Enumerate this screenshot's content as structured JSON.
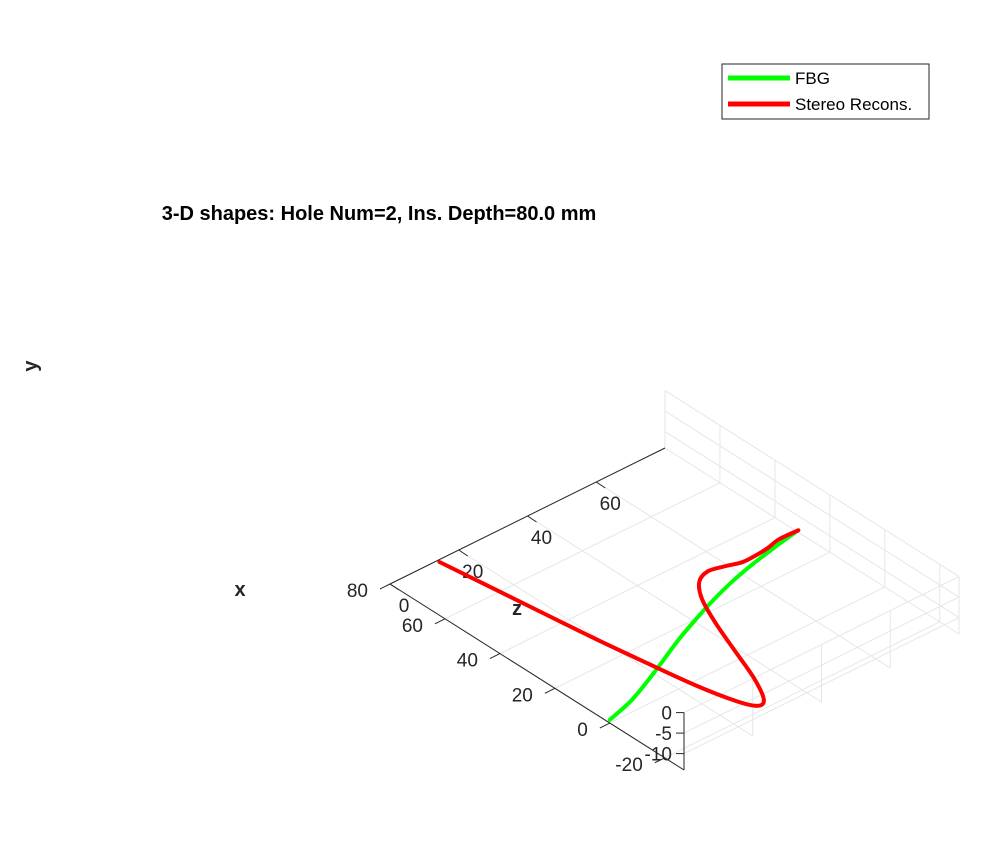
{
  "chart_data": {
    "type": "line",
    "title": "3-D shapes: Hole Num=2, Ins. Depth=80.0 mm",
    "xlabel": "x",
    "ylabel": "y",
    "zlabel": "z",
    "x_ticks": [
      "-20",
      "0",
      "20",
      "40",
      "60",
      "80"
    ],
    "y_ticks": [
      "-10",
      "-5",
      "0"
    ],
    "z_ticks": [
      "0",
      "20",
      "40",
      "60"
    ],
    "xlim": [
      -27,
      80
    ],
    "ylim": [
      -14,
      0
    ],
    "zlim": [
      0,
      80
    ],
    "grid": true,
    "legend_position": "top-right",
    "series": [
      {
        "name": "FBG",
        "color": "#00ff00",
        "points": [
          [
            0.0,
            -13.2,
            0.0
          ],
          [
            2.6,
            -13.2,
            8.0
          ],
          [
            6.4,
            -13.2,
            16.0
          ],
          [
            10.7,
            -13.3,
            24.0
          ],
          [
            15.0,
            -13.3,
            32.0
          ],
          [
            18.8,
            -13.3,
            40.0
          ],
          [
            22.4,
            -13.4,
            48.0
          ],
          [
            25.4,
            -13.4,
            56.0
          ],
          [
            27.9,
            -13.5,
            64.0
          ],
          [
            29.8,
            -13.5,
            72.0
          ],
          [
            31.5,
            -13.5,
            80.0
          ]
        ]
      },
      {
        "name": "Stereo Recons.",
        "color": "#ff0000",
        "points": [
          [
            62.0,
            -1.0,
            0.0
          ],
          [
            48.0,
            -3.0,
            4.0
          ],
          [
            34.0,
            -5.0,
            8.0
          ],
          [
            20.0,
            -7.0,
            12.0
          ],
          [
            6.0,
            -8.7,
            16.0
          ],
          [
            -6.0,
            -10.5,
            20.0
          ],
          [
            -16.0,
            -11.8,
            24.0
          ],
          [
            -20.0,
            -12.5,
            27.0
          ],
          [
            -18.5,
            -12.8,
            30.0
          ],
          [
            -10.0,
            -13.0,
            34.0
          ],
          [
            2.0,
            -13.0,
            38.0
          ],
          [
            14.0,
            -13.0,
            42.0
          ],
          [
            24.0,
            -13.0,
            46.0
          ],
          [
            30.0,
            -13.0,
            50.0
          ],
          [
            32.0,
            -13.0,
            54.0
          ],
          [
            31.0,
            -13.0,
            58.0
          ],
          [
            29.5,
            -13.0,
            62.0
          ],
          [
            29.5,
            -13.0,
            66.0
          ],
          [
            30.0,
            -13.0,
            70.0
          ],
          [
            31.0,
            -13.0,
            74.0
          ],
          [
            31.5,
            -13.5,
            80.0
          ]
        ]
      }
    ]
  }
}
